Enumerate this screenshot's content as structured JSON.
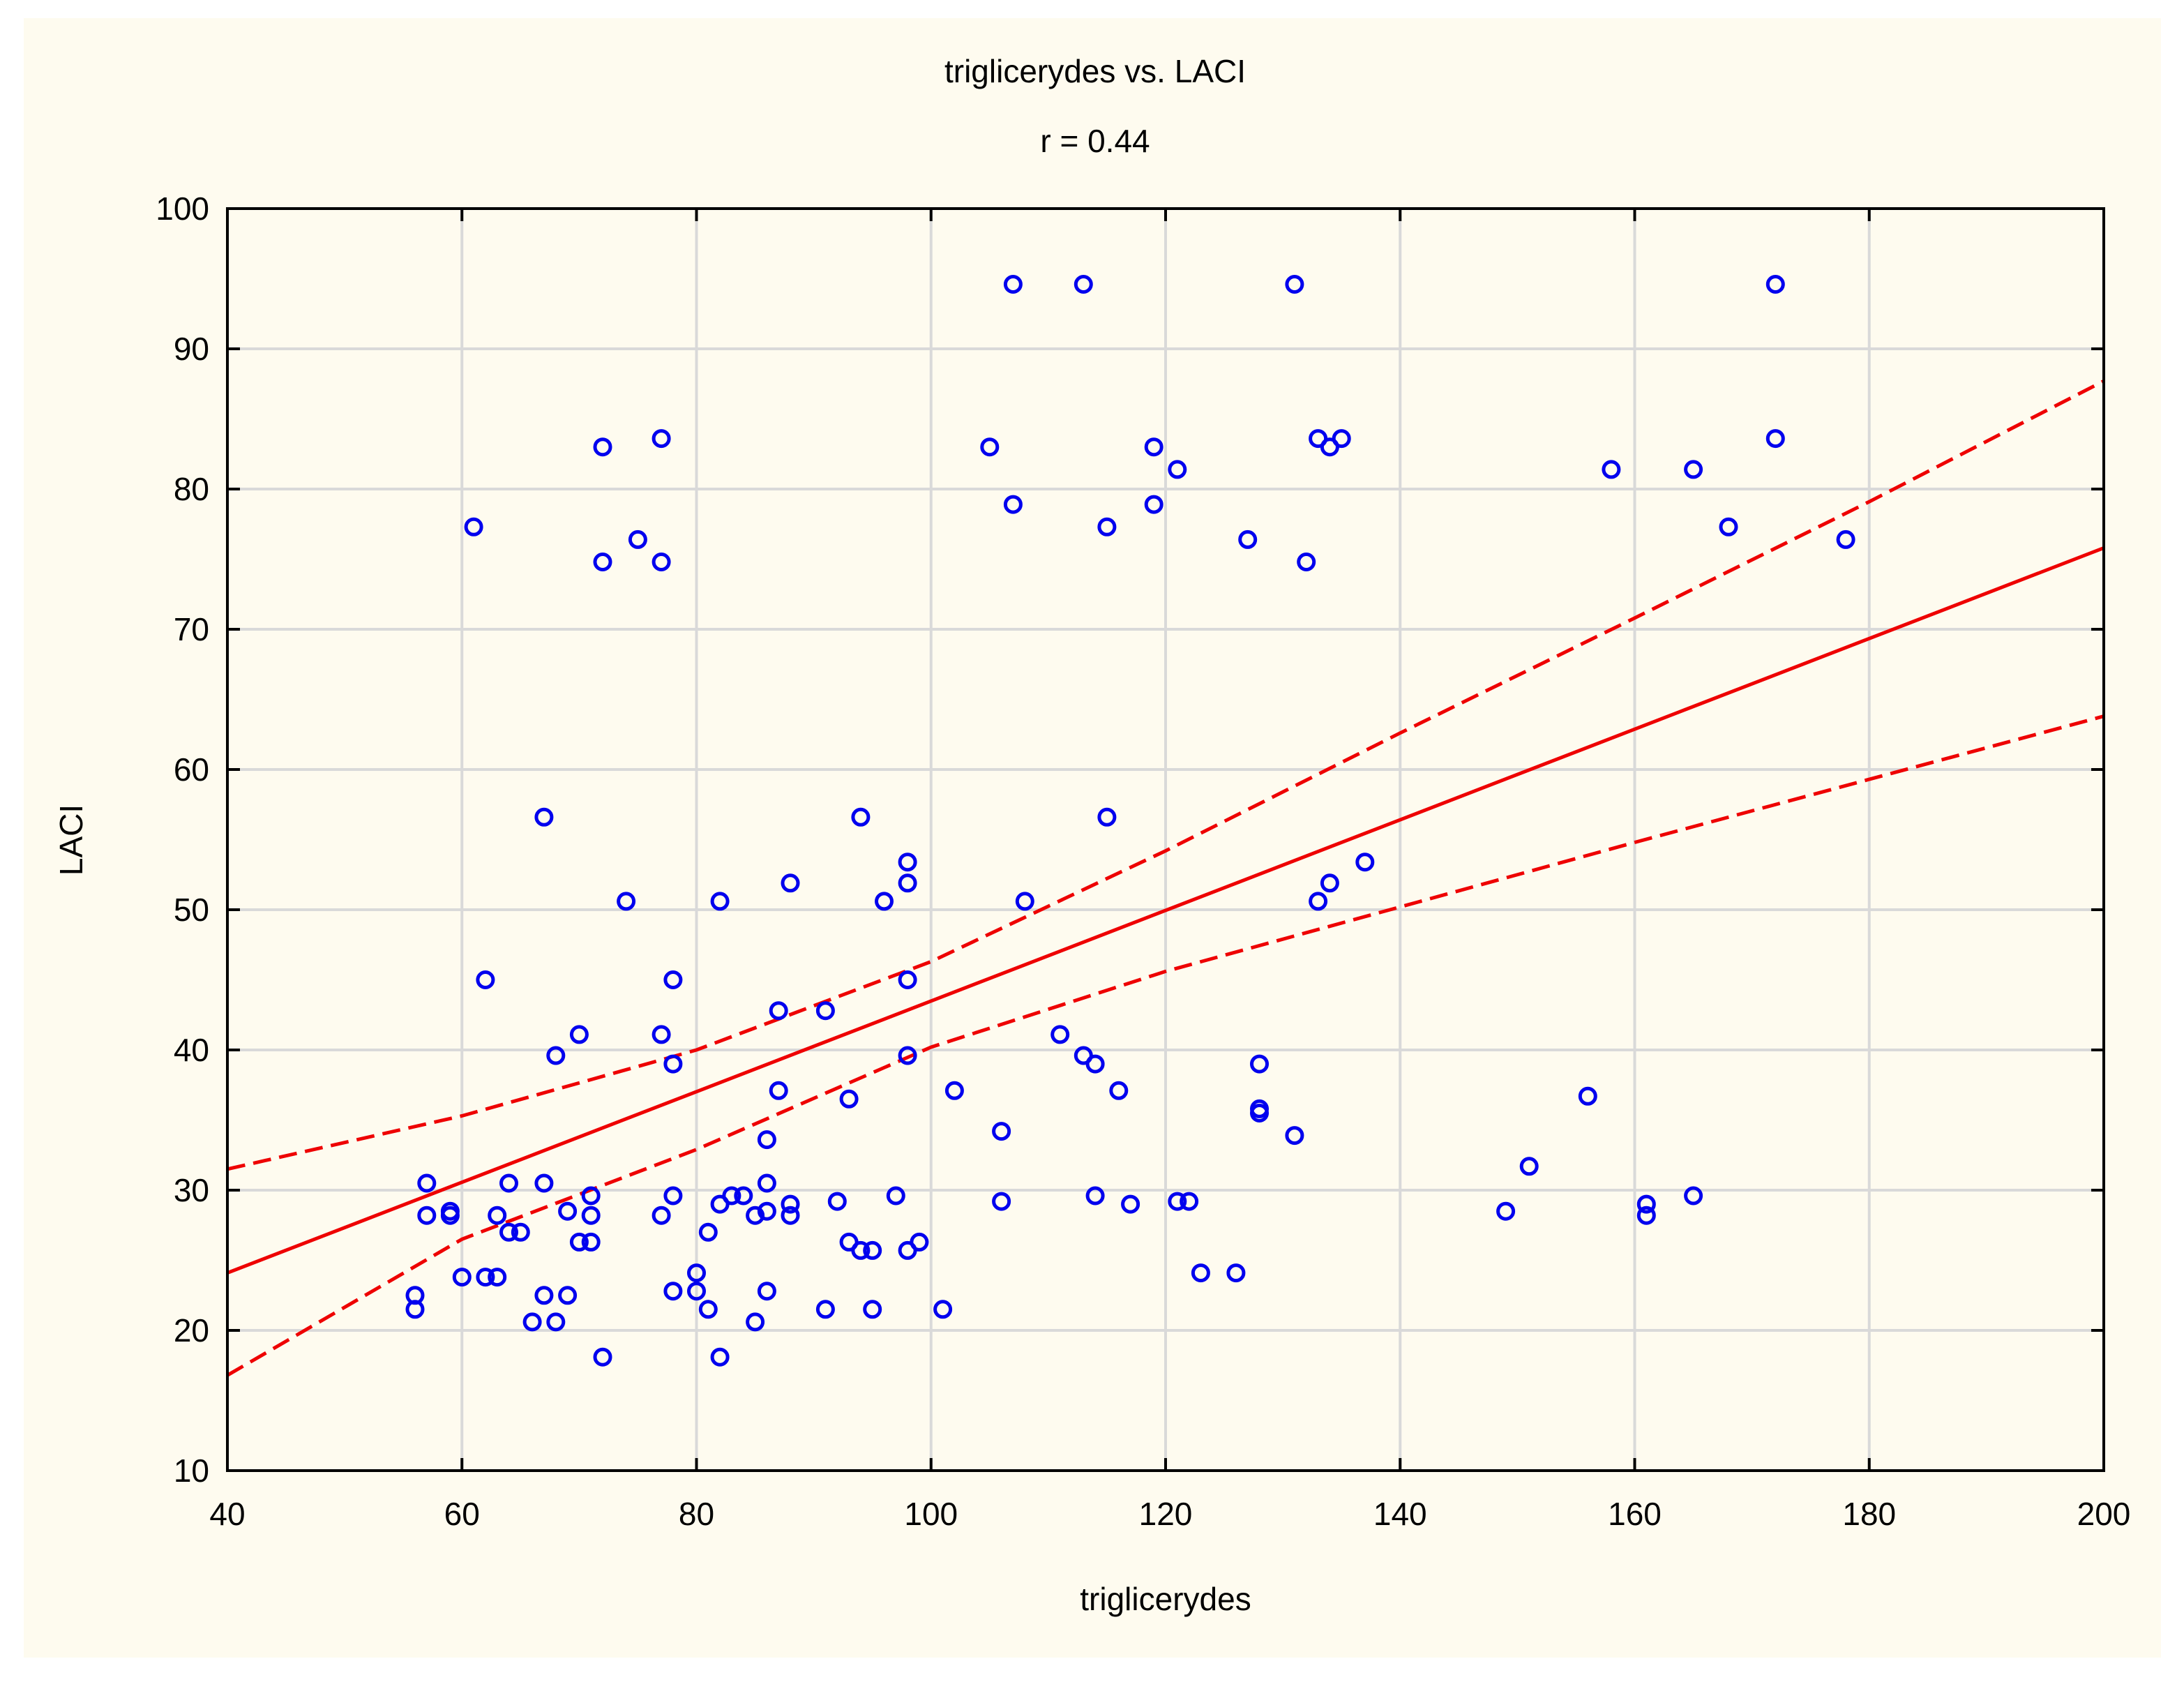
{
  "chart_data": {
    "type": "scatter",
    "title": "triglicerydes vs. LACI",
    "subtitle": "r = 0.44",
    "xlabel": "triglicerydes",
    "ylabel": "LACI",
    "xlim": [
      40,
      200
    ],
    "ylim": [
      10,
      100
    ],
    "xticks": [
      "40",
      "60",
      "80",
      "100",
      "120",
      "140",
      "160",
      "180",
      "200"
    ],
    "yticks": [
      "10",
      "20",
      "30",
      "40",
      "50",
      "60",
      "70",
      "80",
      "90",
      "100"
    ],
    "grid": true,
    "colors": {
      "points": "#0000ee",
      "fit": "#ee0000",
      "grid": "#d9d9d9",
      "background": "#fefbef"
    },
    "regression": {
      "x": [
        40,
        200
      ],
      "y": [
        24.1,
        75.8
      ]
    },
    "confidence_upper": {
      "x": [
        40,
        60,
        80,
        100,
        120,
        140,
        160,
        180,
        200
      ],
      "y": [
        31.5,
        35.3,
        40.0,
        46.3,
        54.2,
        62.6,
        70.8,
        79.1,
        87.7
      ]
    },
    "confidence_lower": {
      "x": [
        40,
        60,
        80,
        100,
        120,
        140,
        160,
        180,
        200
      ],
      "y": [
        16.8,
        26.5,
        32.9,
        40.2,
        45.6,
        50.2,
        54.8,
        59.3,
        63.8
      ]
    },
    "points": [
      [
        56,
        22.5
      ],
      [
        56,
        21.5
      ],
      [
        57,
        28.2
      ],
      [
        57,
        30.5
      ],
      [
        59,
        28.5
      ],
      [
        59,
        28.2
      ],
      [
        60,
        23.8
      ],
      [
        61,
        77.3
      ],
      [
        62,
        45.0
      ],
      [
        62,
        23.8
      ],
      [
        63,
        23.8
      ],
      [
        63,
        28.2
      ],
      [
        64,
        30.5
      ],
      [
        64,
        27.0
      ],
      [
        65,
        27.0
      ],
      [
        66,
        20.6
      ],
      [
        67,
        56.6
      ],
      [
        67,
        30.5
      ],
      [
        67,
        22.5
      ],
      [
        68,
        39.6
      ],
      [
        68,
        20.6
      ],
      [
        69,
        28.5
      ],
      [
        69,
        22.5
      ],
      [
        70,
        41.1
      ],
      [
        70,
        26.3
      ],
      [
        71,
        26.3
      ],
      [
        71,
        28.2
      ],
      [
        71,
        29.6
      ],
      [
        72,
        83.0
      ],
      [
        72,
        74.8
      ],
      [
        72,
        18.1
      ],
      [
        74,
        50.6
      ],
      [
        75,
        76.4
      ],
      [
        77,
        83.6
      ],
      [
        77,
        74.8
      ],
      [
        77,
        41.1
      ],
      [
        77,
        28.2
      ],
      [
        78,
        45.0
      ],
      [
        78,
        39.0
      ],
      [
        78,
        29.6
      ],
      [
        78,
        22.8
      ],
      [
        80,
        24.1
      ],
      [
        80,
        22.8
      ],
      [
        81,
        27.0
      ],
      [
        81,
        21.5
      ],
      [
        82,
        50.6
      ],
      [
        82,
        29.0
      ],
      [
        82,
        18.1
      ],
      [
        83,
        29.6
      ],
      [
        84,
        29.6
      ],
      [
        85,
        28.2
      ],
      [
        85,
        20.6
      ],
      [
        86,
        33.6
      ],
      [
        86,
        30.5
      ],
      [
        86,
        28.5
      ],
      [
        86,
        22.8
      ],
      [
        87,
        42.8
      ],
      [
        87,
        37.1
      ],
      [
        88,
        51.9
      ],
      [
        88,
        29.0
      ],
      [
        88,
        28.2
      ],
      [
        91,
        42.8
      ],
      [
        91,
        21.5
      ],
      [
        92,
        29.2
      ],
      [
        93,
        36.5
      ],
      [
        93,
        26.3
      ],
      [
        94,
        56.6
      ],
      [
        94,
        25.7
      ],
      [
        95,
        25.7
      ],
      [
        95,
        21.5
      ],
      [
        96,
        50.6
      ],
      [
        97,
        29.6
      ],
      [
        98,
        53.4
      ],
      [
        98,
        51.9
      ],
      [
        98,
        45.0
      ],
      [
        98,
        39.6
      ],
      [
        98,
        25.7
      ],
      [
        99,
        26.3
      ],
      [
        101,
        21.5
      ],
      [
        102,
        37.1
      ],
      [
        105,
        83.0
      ],
      [
        106,
        34.2
      ],
      [
        106,
        29.2
      ],
      [
        107,
        94.6
      ],
      [
        107,
        78.9
      ],
      [
        108,
        50.6
      ],
      [
        111,
        41.1
      ],
      [
        113,
        94.6
      ],
      [
        113,
        39.6
      ],
      [
        114,
        39.0
      ],
      [
        114,
        29.6
      ],
      [
        115,
        77.3
      ],
      [
        115,
        56.6
      ],
      [
        116,
        37.1
      ],
      [
        117,
        29.0
      ],
      [
        119,
        83.0
      ],
      [
        119,
        78.9
      ],
      [
        121,
        81.4
      ],
      [
        121,
        29.2
      ],
      [
        122,
        29.2
      ],
      [
        123,
        24.1
      ],
      [
        126,
        24.1
      ],
      [
        127,
        76.4
      ],
      [
        128,
        39.0
      ],
      [
        128,
        35.8
      ],
      [
        128,
        35.5
      ],
      [
        131,
        94.6
      ],
      [
        131,
        33.9
      ],
      [
        132,
        74.8
      ],
      [
        133,
        83.6
      ],
      [
        133,
        50.6
      ],
      [
        134,
        83.0
      ],
      [
        134,
        51.9
      ],
      [
        135,
        83.6
      ],
      [
        137,
        53.4
      ],
      [
        149,
        28.5
      ],
      [
        151,
        31.7
      ],
      [
        156,
        36.7
      ],
      [
        158,
        81.4
      ],
      [
        161,
        29.0
      ],
      [
        161,
        28.2
      ],
      [
        165,
        81.4
      ],
      [
        165,
        29.6
      ],
      [
        168,
        77.3
      ],
      [
        172,
        94.6
      ],
      [
        172,
        83.6
      ],
      [
        178,
        76.4
      ]
    ]
  }
}
